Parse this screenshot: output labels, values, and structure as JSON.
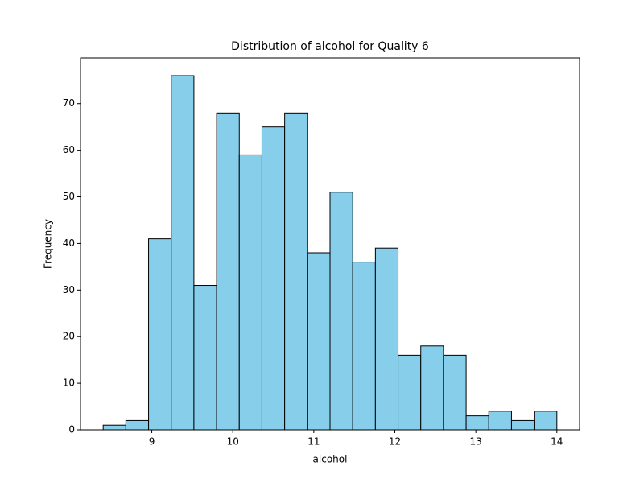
{
  "chart_data": {
    "type": "histogram",
    "title": "Distribution of alcohol for Quality 6",
    "x_label": "alcohol",
    "y_label": "Frequency",
    "bins": [
      8.4,
      8.68,
      8.96,
      9.24,
      9.52,
      9.8,
      10.08,
      10.36,
      10.64,
      10.92,
      11.2,
      11.48,
      11.76,
      12.04,
      12.32,
      12.6,
      12.88,
      13.16,
      13.44,
      13.72,
      14.0
    ],
    "values": [
      1,
      2,
      41,
      76,
      31,
      68,
      59,
      65,
      68,
      38,
      51,
      36,
      39,
      16,
      18,
      16,
      3,
      4,
      2,
      4
    ],
    "color": "#87ceeb",
    "edgecolor": "#000000",
    "xlim": [
      8.12,
      14.28
    ],
    "xticks": [
      9,
      10,
      11,
      12,
      13,
      14
    ],
    "ylim": [
      0,
      79.8
    ],
    "yticks": [
      0,
      10,
      20,
      30,
      40,
      50,
      60,
      70
    ]
  }
}
